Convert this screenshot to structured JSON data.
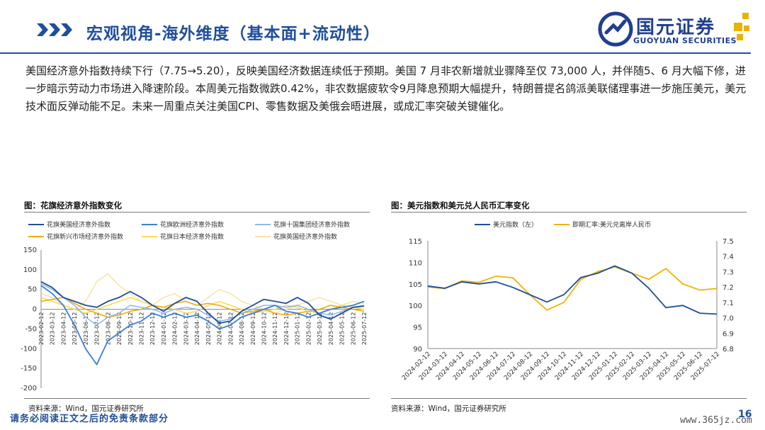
{
  "header": {
    "title": "宏观视角-海外维度（基本面+流动性）",
    "logo_name": "国元证券",
    "logo_en": "GUOYUAN SECURITIES",
    "accent": "#1f4e9c"
  },
  "paragraph": "美国经济意外指数持续下行（7.75→5.20），反映美国经济数据连续低于预期。美国 7 月非农新增就业骤降至仅 73,000 人，并伴随5、6 月大幅下修，进一步暗示劳动力市场进入降速阶段。本周美元指数微跌0.42%，非农数据疲软令9月降息预期大幅提升，特朗普提名鸽派美联储理事进一步施压美元，美元技术面反弹动能不足。未来一周重点关注美国CPI、零售数据及美俄会晤进展，或成汇率突破关键催化。",
  "charts": {
    "left": {
      "title": "图：花旗经济意外指数变化",
      "source": "资料来源：Wind，国元证券研究所"
    },
    "right": {
      "title": "图：美元指数和美元兑人民币汇率变化",
      "source": "资料来源：Wind，国元证券研究所"
    }
  },
  "chart_data": [
    {
      "type": "line",
      "title": "图：花旗经济意外指数变化",
      "xlabel": "",
      "ylabel": "",
      "ylim": [
        -200,
        150
      ],
      "yticks": [
        150,
        100,
        50,
        0,
        -50,
        -100,
        -150,
        -200
      ],
      "x": [
        "2023-02-12",
        "2023-03-12",
        "2023-04-12",
        "2023-05-12",
        "2023-06-12",
        "2023-07-12",
        "2023-08-12",
        "2023-09-12",
        "2023-10-12",
        "2023-11-12",
        "2023-12-12",
        "2024-01-12",
        "2024-02-12",
        "2024-03-12",
        "2024-04-12",
        "2024-05-12",
        "2024-06-12",
        "2024-07-12",
        "2024-08-12",
        "2024-09-12",
        "2024-10-12",
        "2024-11-12",
        "2024-12-12",
        "2025-01-12",
        "2025-02-12",
        "2025-03-12",
        "2025-04-12",
        "2025-05-12",
        "2025-06-12",
        "2025-07-12"
      ],
      "legend_position": "top",
      "series": [
        {
          "name": "花旗美国经济意外指数",
          "color": "#1f4e9c",
          "values": [
            70,
            55,
            30,
            20,
            10,
            5,
            20,
            30,
            45,
            30,
            10,
            -5,
            15,
            30,
            20,
            -10,
            -35,
            -30,
            -5,
            10,
            25,
            20,
            15,
            30,
            15,
            -15,
            -25,
            -10,
            5,
            8
          ]
        },
        {
          "name": "花旗欧洲经济意外指数",
          "color": "#3a7fd5",
          "values": [
            60,
            40,
            10,
            -40,
            -100,
            -140,
            -80,
            -60,
            -40,
            -30,
            -10,
            -20,
            -10,
            -20,
            -15,
            -30,
            -50,
            -40,
            -20,
            -10,
            0,
            10,
            -5,
            -10,
            -20,
            -10,
            0,
            5,
            10,
            20
          ]
        },
        {
          "name": "花旗十国集团经济意外指数",
          "color": "#8db8ea",
          "values": [
            65,
            50,
            30,
            10,
            -20,
            -40,
            -20,
            -10,
            10,
            5,
            0,
            -10,
            0,
            5,
            0,
            -15,
            -30,
            -25,
            -10,
            0,
            10,
            10,
            5,
            10,
            0,
            -10,
            -15,
            -5,
            5,
            10
          ]
        },
        {
          "name": "花旗新兴市场经济意外指数",
          "color": "#f0a800",
          "values": [
            20,
            25,
            30,
            15,
            0,
            -10,
            -20,
            -15,
            -5,
            0,
            10,
            5,
            15,
            20,
            10,
            15,
            10,
            0,
            -10,
            -5,
            0,
            -10,
            -15,
            -10,
            -5,
            0,
            10,
            5,
            0,
            -5
          ]
        },
        {
          "name": "花旗日本经济意外指数",
          "color": "#ffd84d",
          "values": [
            30,
            20,
            10,
            0,
            -10,
            0,
            10,
            20,
            30,
            20,
            10,
            5,
            0,
            -10,
            -5,
            10,
            20,
            10,
            0,
            -10,
            -5,
            0,
            10,
            5,
            -5,
            -10,
            0,
            10,
            5,
            0
          ]
        },
        {
          "name": "花旗英国经济意外指数",
          "color": "#f7e3a8",
          "values": [
            40,
            30,
            10,
            0,
            20,
            70,
            90,
            60,
            40,
            20,
            10,
            30,
            40,
            20,
            10,
            30,
            50,
            40,
            20,
            10,
            0,
            -10,
            0,
            10,
            20,
            30,
            20,
            10,
            20,
            15
          ]
        }
      ]
    },
    {
      "type": "line",
      "title": "图：美元指数和美元兑人民币汇率变化",
      "xlabel": "",
      "ylabel": "",
      "legend_position": "top",
      "y_left": {
        "range": [
          90,
          115
        ],
        "ticks": [
          115,
          110,
          105,
          100,
          95,
          90
        ]
      },
      "y_right": {
        "range": [
          6.8,
          7.5
        ],
        "ticks": [
          "7.5",
          "7.4",
          "7.3",
          "7.2",
          "7.1",
          "7.0",
          "6.9",
          "6.8"
        ]
      },
      "x": [
        "2024-02-12",
        "2024-03-12",
        "2024-04-12",
        "2024-05-12",
        "2024-06-12",
        "2024-07-12",
        "2024-08-12",
        "2024-09-12",
        "2024-10-12",
        "2024-11-12",
        "2024-12-12",
        "2025-01-12",
        "2025-02-12",
        "2025-03-12",
        "2025-04-12",
        "2025-05-12",
        "2025-06-12",
        "2025-07-12"
      ],
      "series": [
        {
          "name": "美元指数（左）",
          "axis": "left",
          "color": "#1f4e9c",
          "values": [
            104.5,
            104.0,
            105.5,
            105.0,
            105.5,
            104.2,
            102.5,
            100.8,
            102.5,
            106.5,
            107.5,
            109.2,
            107.5,
            104.0,
            99.5,
            100.0,
            98.2,
            98.0
          ]
        },
        {
          "name": "即期汇率:美元兑离岸人民币",
          "axis": "right",
          "color": "#f0b400",
          "values": [
            7.2,
            7.19,
            7.24,
            7.23,
            7.27,
            7.26,
            7.15,
            7.05,
            7.1,
            7.25,
            7.3,
            7.33,
            7.29,
            7.25,
            7.32,
            7.22,
            7.18,
            7.19
          ]
        }
      ]
    }
  ],
  "footer": {
    "disclaimer": "请务必阅读正文之后的免责条款部分",
    "page_number": "16",
    "watermark": "www.365jz.com"
  }
}
